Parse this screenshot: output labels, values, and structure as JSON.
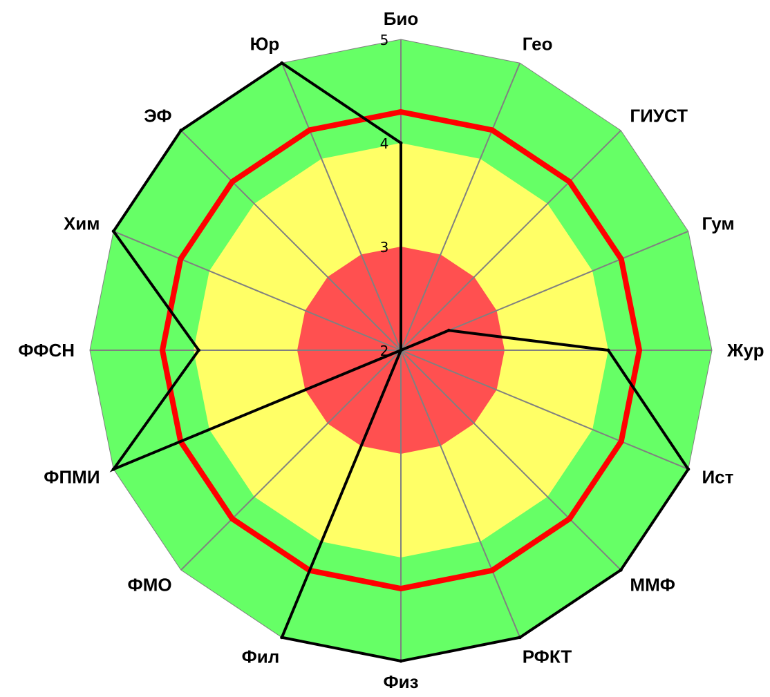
{
  "chart_data": {
    "type": "radar",
    "categories": [
      "Био",
      "Гео",
      "ГИУСТ",
      "Гум",
      "Жур",
      "Ист",
      "ММФ",
      "РФКТ",
      "Физ",
      "Фил",
      "ФМО",
      "ФПМИ",
      "ФФСН",
      "Хим",
      "ЭФ",
      "Юр"
    ],
    "series": [
      {
        "values": [
          4.0,
          2.0,
          2.0,
          2.5,
          4.0,
          5.0,
          5.0,
          5.0,
          5.0,
          5.0,
          2.0,
          5.0,
          3.95,
          5.0,
          5.0,
          5.0
        ],
        "color": "#000000"
      }
    ],
    "reference_ring": {
      "value": 4.3,
      "color": "#ff0000"
    },
    "bands": [
      {
        "from": 2,
        "to": 3,
        "color": "#ff5050"
      },
      {
        "from": 3,
        "to": 4,
        "color": "#ffff66"
      },
      {
        "from": 4,
        "to": 5,
        "color": "#66ff66"
      }
    ],
    "ticks": [
      "2",
      "3",
      "4",
      "5"
    ],
    "rlim": [
      2,
      5
    ],
    "grid_color": "#808080"
  }
}
